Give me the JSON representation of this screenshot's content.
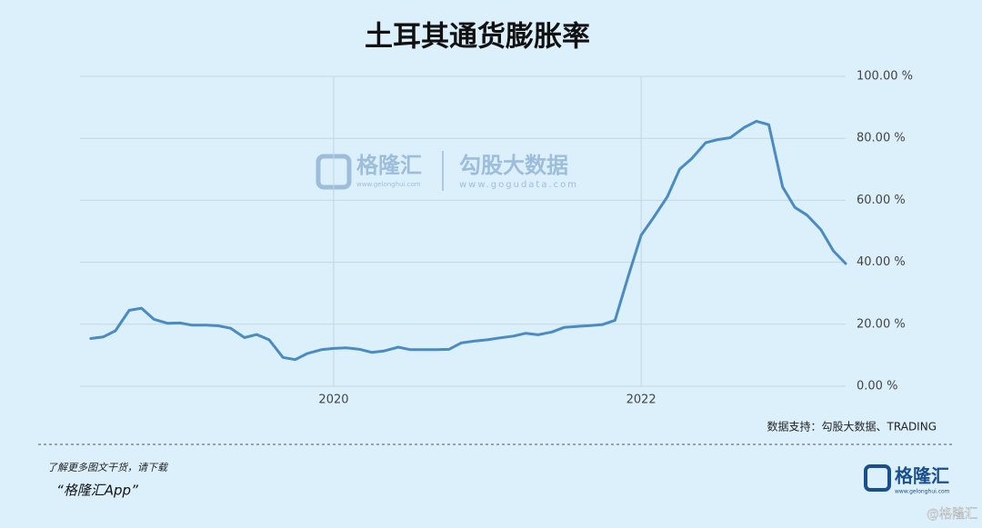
{
  "chart_data": {
    "type": "line",
    "title": "土耳其通货膨胀率",
    "x": [
      2018.42,
      2018.5,
      2018.58,
      2018.67,
      2018.75,
      2018.83,
      2018.92,
      2019.0,
      2019.08,
      2019.17,
      2019.25,
      2019.33,
      2019.42,
      2019.5,
      2019.58,
      2019.67,
      2019.75,
      2019.83,
      2019.92,
      2020.0,
      2020.08,
      2020.17,
      2020.25,
      2020.33,
      2020.42,
      2020.5,
      2020.58,
      2020.67,
      2020.75,
      2020.83,
      2020.92,
      2021.0,
      2021.08,
      2021.17,
      2021.25,
      2021.33,
      2021.42,
      2021.5,
      2021.58,
      2021.67,
      2021.75,
      2021.83,
      2021.92,
      2022.0,
      2022.08,
      2022.17,
      2022.25,
      2022.33,
      2022.42,
      2022.5,
      2022.58,
      2022.67,
      2022.75,
      2022.83,
      2022.92,
      2023.0,
      2023.08,
      2023.17,
      2023.25,
      2023.33
    ],
    "values": [
      15.4,
      15.9,
      17.9,
      24.5,
      25.2,
      21.6,
      20.3,
      20.4,
      19.7,
      19.7,
      19.5,
      18.7,
      15.7,
      16.7,
      15.0,
      9.3,
      8.6,
      10.6,
      11.8,
      12.2,
      12.4,
      11.9,
      10.9,
      11.4,
      12.6,
      11.8,
      11.8,
      11.8,
      11.9,
      14.0,
      14.6,
      15.0,
      15.6,
      16.2,
      17.1,
      16.6,
      17.5,
      19.0,
      19.3,
      19.6,
      19.9,
      21.3,
      36.1,
      48.7,
      54.4,
      61.1,
      70.0,
      73.5,
      78.6,
      79.6,
      80.2,
      83.5,
      85.5,
      84.4,
      64.3,
      57.7,
      55.2,
      50.5,
      43.7,
      39.6
    ],
    "color": "#4a8bc4",
    "xlim": [
      2018.35,
      2023.33
    ],
    "xticks": [
      2020,
      2022
    ],
    "ylim": [
      0,
      100
    ],
    "yticks": [
      {
        "value": 0,
        "label": "0.00 %"
      },
      {
        "value": 20,
        "label": "20.00 %"
      },
      {
        "value": 40,
        "label": "40.00 %"
      },
      {
        "value": 60,
        "label": "60.00 %"
      },
      {
        "value": 80,
        "label": "80.00 %"
      },
      {
        "value": 100,
        "label": "100.00 %"
      }
    ],
    "grid": true,
    "source": "数据支持：勾股大数据、TRADING"
  },
  "watermark": {
    "brand": "格隆汇",
    "brand_url": "www.gelonghui.com",
    "partner": "勾股大数据",
    "partner_url": "www.gogudata.com"
  },
  "footer": {
    "prompt": "了解更多图文干货，请下载",
    "app": "“格隆汇App”",
    "logo": "格隆汇",
    "logo_url": "www.gelonghui.com",
    "handle": "@格隆汇"
  }
}
